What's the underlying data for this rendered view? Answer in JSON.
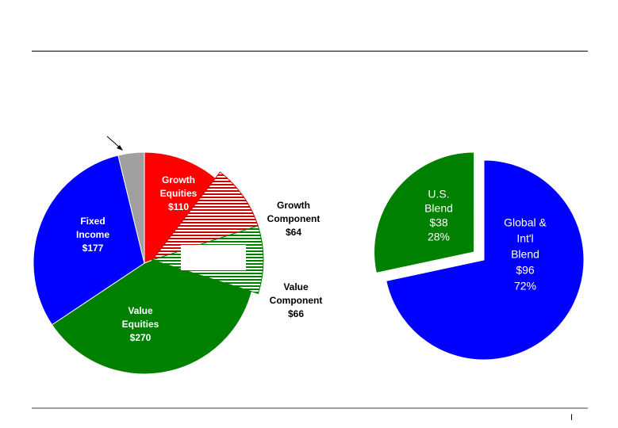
{
  "page": {
    "page_number": "I"
  },
  "chart_data": [
    {
      "type": "pie",
      "title": "",
      "slices": [
        {
          "name": "Growth Equities",
          "value": 110,
          "value_label": "$110",
          "color": "#ff0000",
          "label_lines": [
            "Growth",
            "Equities",
            "$110"
          ]
        },
        {
          "name": "Value Equities",
          "value": 270,
          "value_label": "$270",
          "color": "#008000",
          "label_lines": [
            "Value",
            "Equities",
            "$270"
          ]
        },
        {
          "name": "Fixed Income",
          "value": 177,
          "value_label": "$177",
          "color": "#0000ff",
          "label_lines": [
            "Fixed",
            "Income",
            "$177"
          ]
        },
        {
          "name": "",
          "value": 22,
          "value_label": "",
          "color": "#a0a0a0",
          "label_lines": []
        }
      ],
      "breakout": [
        {
          "name": "Growth Component",
          "value": 64,
          "value_label": "$64",
          "color": "#cc0000",
          "pattern": "hatch",
          "label_lines": [
            "Growth",
            "Component",
            "$64"
          ]
        },
        {
          "name": "Value Component",
          "value": 66,
          "value_label": "$66",
          "color": "#008000",
          "pattern": "hatch",
          "label_lines": [
            "Value",
            "Component",
            "$66"
          ]
        }
      ]
    },
    {
      "type": "pie",
      "title": "",
      "slices": [
        {
          "name": "U.S. Blend",
          "value": 38,
          "percent": "28%",
          "color": "#008000",
          "exploded": true,
          "label_lines": [
            "U.S.",
            "Blend",
            "$38",
            "28%"
          ]
        },
        {
          "name": "Global & Int'l Blend",
          "value": 96,
          "percent": "72%",
          "color": "#0000ff",
          "exploded": false,
          "label_lines": [
            "Global &",
            "Int'l",
            "Blend",
            "$96",
            "72%"
          ]
        }
      ]
    }
  ]
}
